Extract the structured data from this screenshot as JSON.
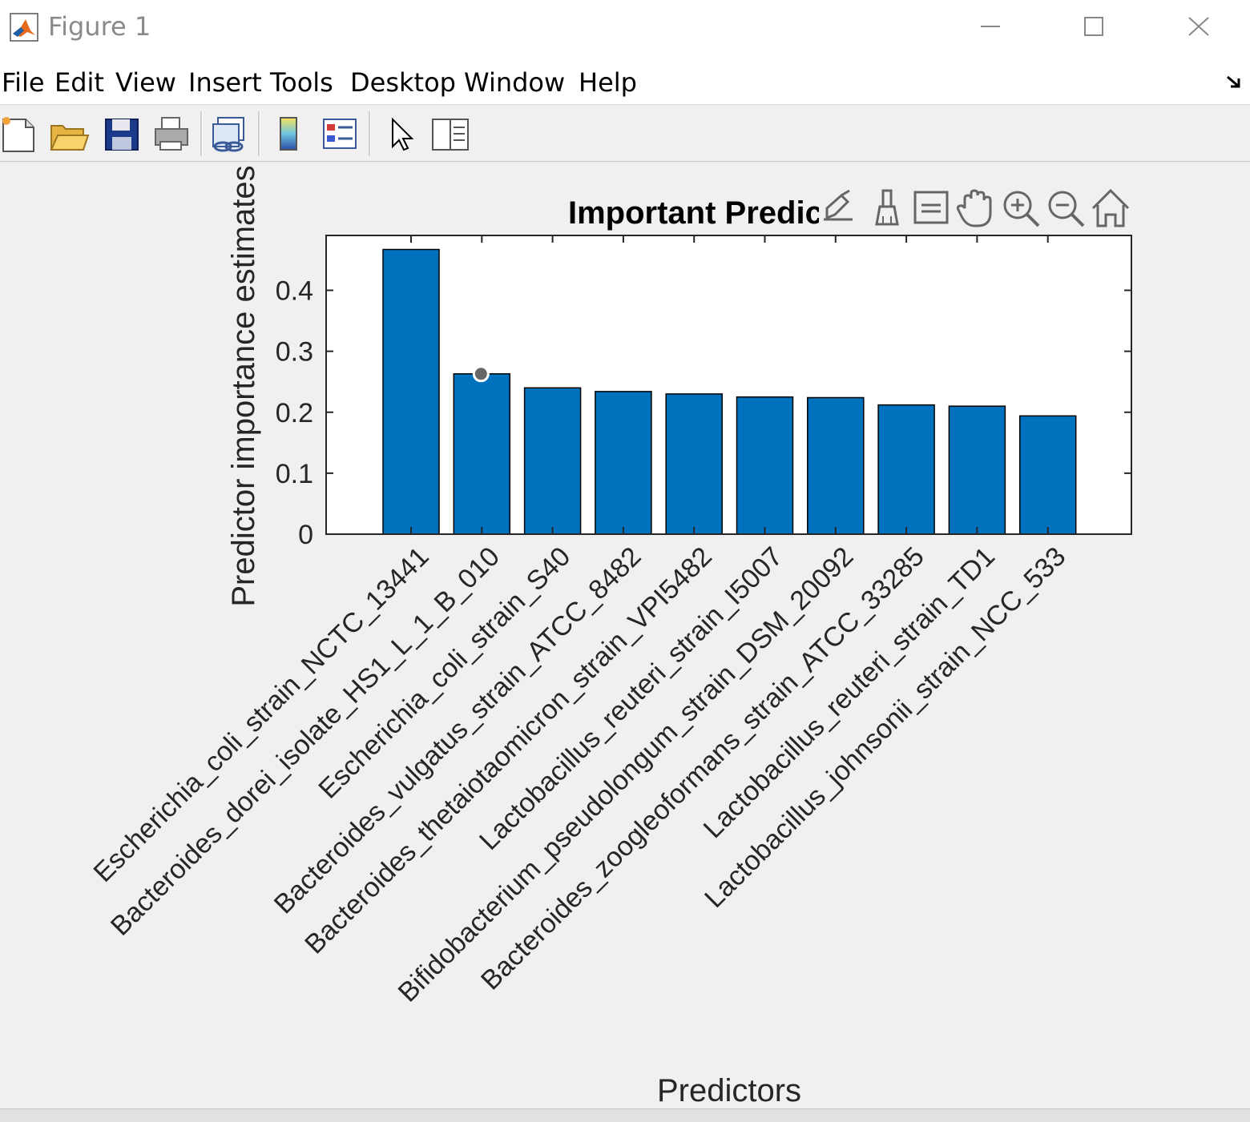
{
  "window": {
    "title": "Figure 1"
  },
  "menu": {
    "items": [
      {
        "label": "File"
      },
      {
        "label": "Edit"
      },
      {
        "label": "View"
      },
      {
        "label": "Insert"
      },
      {
        "label": "Tools"
      },
      {
        "label": "Desktop"
      },
      {
        "label": "Window"
      },
      {
        "label": "Help"
      }
    ]
  },
  "toolbar": {
    "icons": [
      "new-figure-icon",
      "open-folder-icon",
      "save-icon",
      "print-icon",
      "link-plot-icon",
      "colorbar-icon",
      "legend-icon",
      "pointer-icon",
      "property-editor-icon"
    ]
  },
  "axes_toolbar": {
    "icons": [
      "export-icon",
      "brush-icon",
      "data-tips-icon",
      "pan-icon",
      "zoom-in-icon",
      "zoom-out-icon",
      "home-icon"
    ]
  },
  "colors": {
    "bar": "#0072BD",
    "bar_edge": "#000000",
    "marker": "#666666"
  },
  "chart_data": {
    "type": "bar",
    "title": "Important Predictors",
    "xlabel": "Predictors",
    "ylabel": "Predictor importance estimates",
    "ylim": [
      0,
      0.49
    ],
    "yticks": [
      0,
      0.1,
      0.2,
      0.3,
      0.4
    ],
    "ytick_labels": [
      "0",
      "0.1",
      "0.2",
      "0.3",
      "0.4"
    ],
    "grid": false,
    "categories": [
      "Escherichia_coli_strain_NCTC_13441",
      "Bacteroides_dorei_isolate_HS1_L_1_B_010",
      "Escherichia_coli_strain_S40",
      "Bacteroides_vulgatus_strain_ATCC_8482",
      "Bacteroides_thetaiotaomicron_strain_VPI5482",
      "Lactobacillus_reuteri_strain_I5007",
      "Bifidobacterium_pseudolongum_strain_DSM_20092",
      "Bacteroides_zoogleoformans_strain_ATCC_33285",
      "Lactobacillus_reuteri_strain_TD1",
      "Lactobacillus_johnsonii_strain_NCC_533"
    ],
    "values": [
      0.467,
      0.263,
      0.24,
      0.234,
      0.23,
      0.225,
      0.224,
      0.212,
      0.21,
      0.194
    ],
    "highlighted_point": {
      "category_index": 1,
      "value": 0.263
    }
  }
}
